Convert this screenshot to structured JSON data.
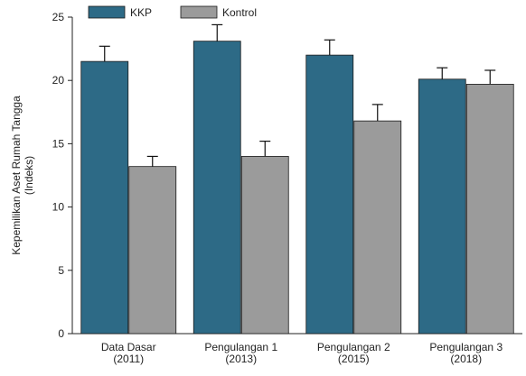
{
  "chart_data": {
    "type": "bar",
    "categories": [
      [
        "Data Dasar",
        "(2011)"
      ],
      [
        "Pengulangan 1",
        "(2013)"
      ],
      [
        "Pengulangan 2",
        "(2015)"
      ],
      [
        "Pengulangan 3",
        "(2018)"
      ]
    ],
    "series": [
      {
        "name": "KKP",
        "values": [
          21.5,
          23.1,
          22.0,
          20.1
        ],
        "errors": [
          1.2,
          1.3,
          1.2,
          0.9
        ],
        "color": "#2d6a86"
      },
      {
        "name": "Kontrol",
        "values": [
          13.2,
          14.0,
          16.8,
          19.7
        ],
        "errors": [
          0.8,
          1.2,
          1.3,
          1.1
        ],
        "color": "#9b9b9b"
      }
    ],
    "ylabel_lines": [
      "Kepemilikan Aset Rumah Tangga",
      "(Indeks)"
    ],
    "ylim": [
      0,
      25
    ],
    "yticks": [
      0,
      5,
      10,
      15,
      20,
      25
    ],
    "legend_position": "top-left",
    "grid": false
  }
}
